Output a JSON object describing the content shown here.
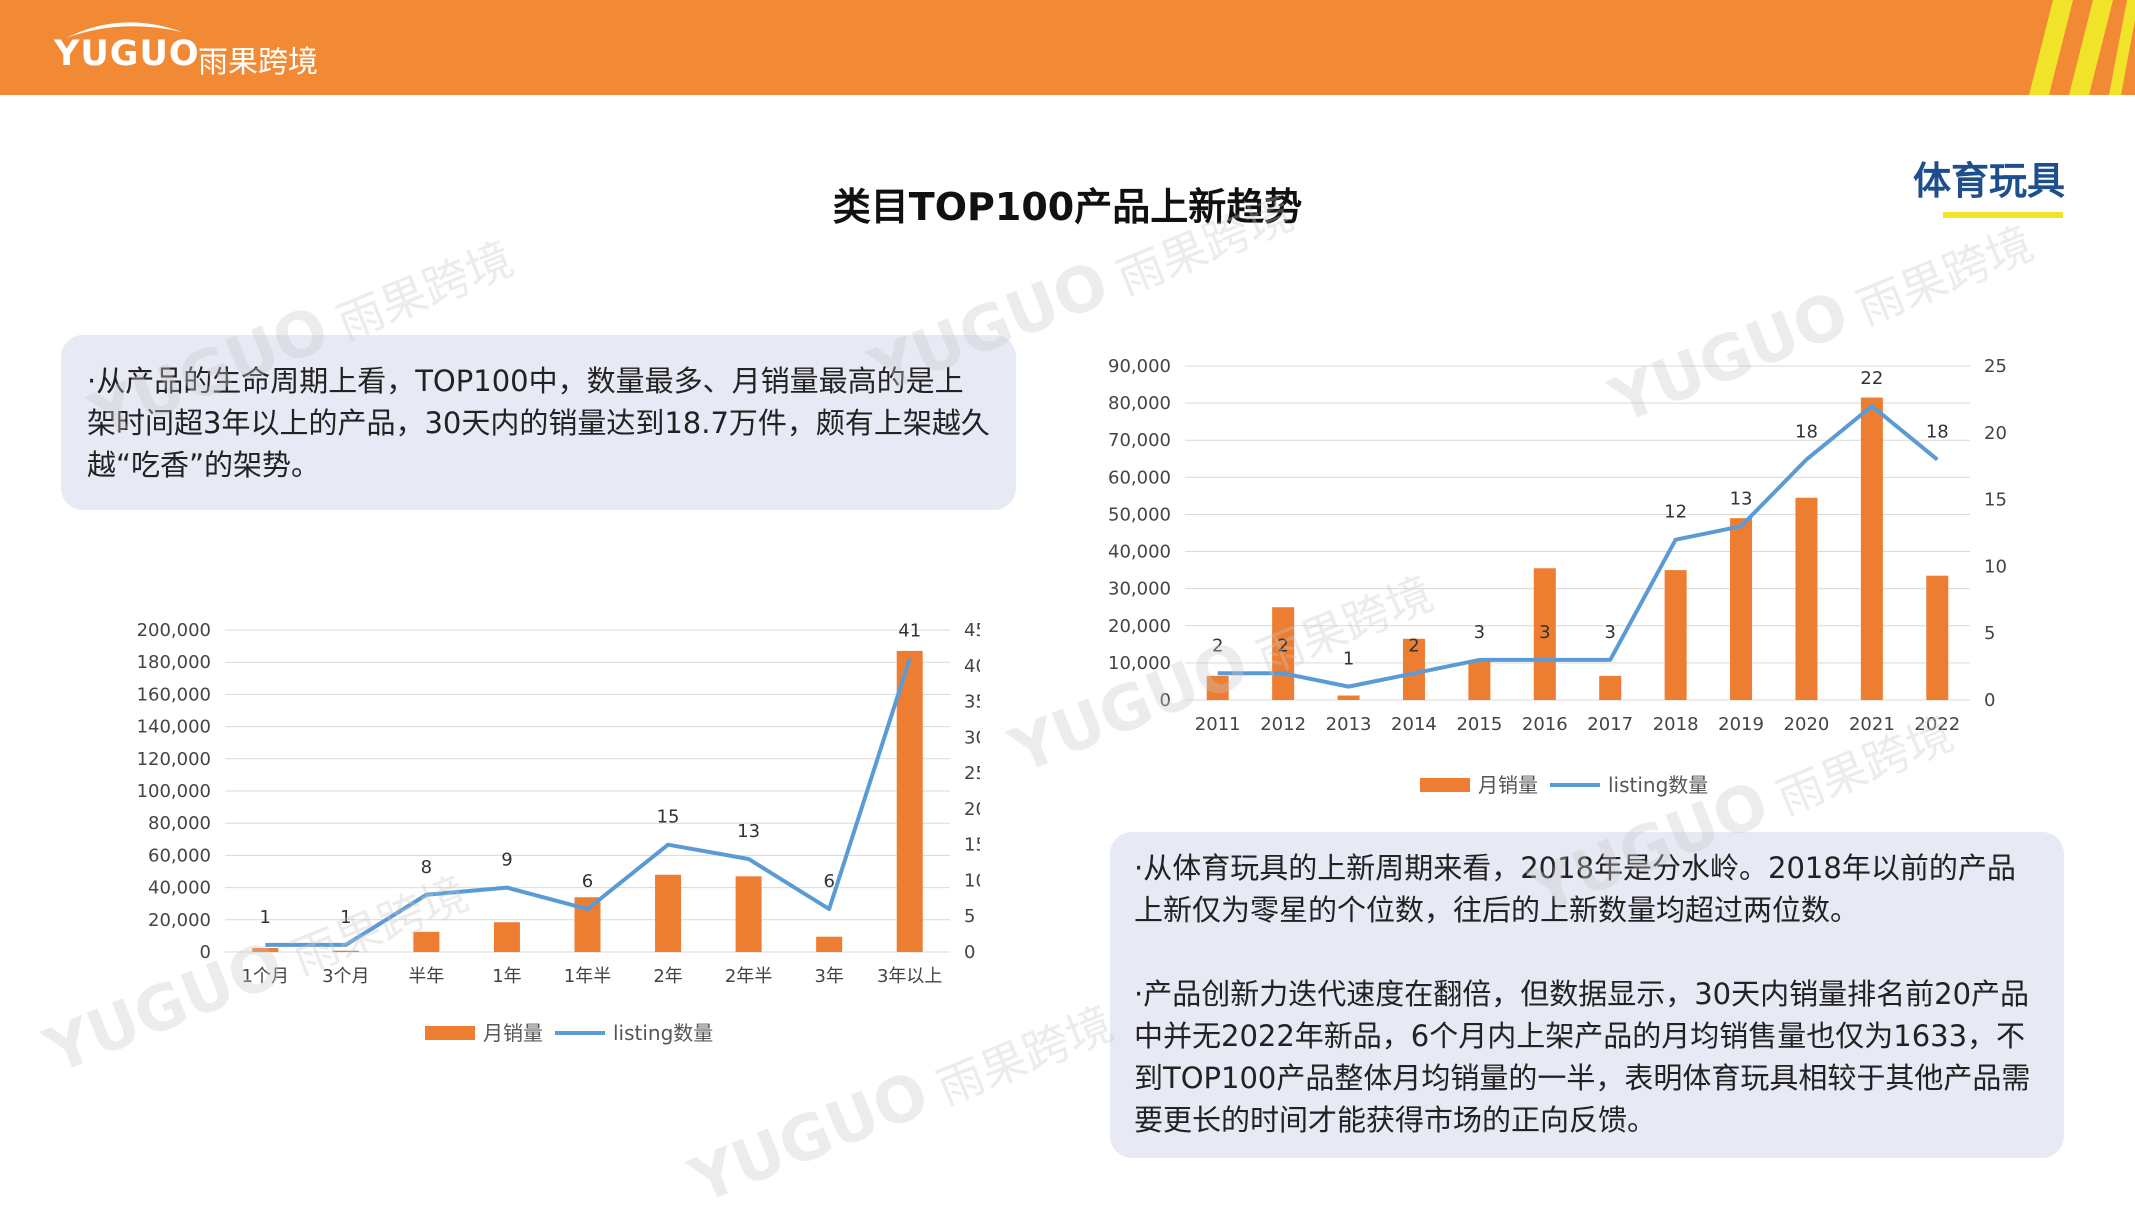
{
  "brand": {
    "logo_en": "YUGUO",
    "logo_cn": "雨果跨境",
    "accent": "#f28a35",
    "stripe_color": "#f1e22a"
  },
  "title": "类目TOP100产品上新趋势",
  "category": "体育玩具",
  "left_text": "·从产品的生命周期上看，TOP100中，数量最多、月销量最高的是上架时间超3年以上的产品，30天内的销量达到18.7万件，颇有上架越久越“吃香”的架势。",
  "right_text": [
    "·从体育玩具的上新周期来看，2018年是分水岭。2018年以前的产品上新仅为零星的个位数，往后的上新数量均超过两位数。",
    "·产品创新力迭代速度在翻倍，但数据显示，30天内销量排名前20产品中并无2022年新品，6个月内上架产品的月均销售量也仅为1633，不到TOP100产品整体月均销量的一半，表明体育玩具相较于其他产品需要更长的时间才能获得市场的正向反馈。"
  ],
  "watermark": {
    "en": "YUGUO",
    "cn": "雨果跨境"
  },
  "chart_data": [
    {
      "type": "bar",
      "categories": [
        "1个月",
        "3个月",
        "半年",
        "1年",
        "1年半",
        "2年",
        "2年半",
        "3年",
        "3年以上"
      ],
      "series": [
        {
          "name": "月销量",
          "type": "bar",
          "axis": "left",
          "color": "#ed7d31",
          "values": [
            2500,
            800,
            12500,
            18500,
            34000,
            48000,
            47000,
            9500,
            187000
          ]
        },
        {
          "name": "listing数量",
          "type": "line",
          "axis": "right",
          "color": "#5b9bd5",
          "values": [
            1,
            1,
            8,
            9,
            6,
            15,
            13,
            6,
            41
          ]
        }
      ],
      "ylim_left": [
        0,
        200000
      ],
      "ylim_right": [
        0,
        45
      ],
      "yticks_left": [
        "0",
        "20,000",
        "40,000",
        "60,000",
        "80,000",
        "100,000",
        "120,000",
        "140,000",
        "160,000",
        "180,000",
        "200,000"
      ],
      "yticks_right": [
        "0",
        "5",
        "10",
        "15",
        "20",
        "25",
        "30",
        "35",
        "40",
        "45"
      ],
      "grid": true,
      "legend": "bottom-center"
    },
    {
      "type": "bar",
      "categories": [
        "2011",
        "2012",
        "2013",
        "2014",
        "2015",
        "2016",
        "2017",
        "2018",
        "2019",
        "2020",
        "2021",
        "2022"
      ],
      "series": [
        {
          "name": "月销量",
          "type": "bar",
          "axis": "left",
          "color": "#ed7d31",
          "values": [
            6500,
            25000,
            1200,
            16500,
            10500,
            35500,
            6500,
            35000,
            49000,
            54500,
            81500,
            33500
          ]
        },
        {
          "name": "listing数量",
          "type": "line",
          "axis": "right",
          "color": "#5b9bd5",
          "values": [
            2,
            2,
            1,
            2,
            3,
            3,
            3,
            12,
            13,
            18,
            22,
            18
          ]
        }
      ],
      "ylim_left": [
        0,
        90000
      ],
      "ylim_right": [
        0,
        25
      ],
      "yticks_left": [
        "0",
        "10,000",
        "20,000",
        "30,000",
        "40,000",
        "50,000",
        "60,000",
        "70,000",
        "80,000",
        "90,000"
      ],
      "yticks_right": [
        "0",
        "5",
        "10",
        "15",
        "20",
        "25"
      ],
      "grid": true,
      "legend": "bottom-center"
    }
  ]
}
